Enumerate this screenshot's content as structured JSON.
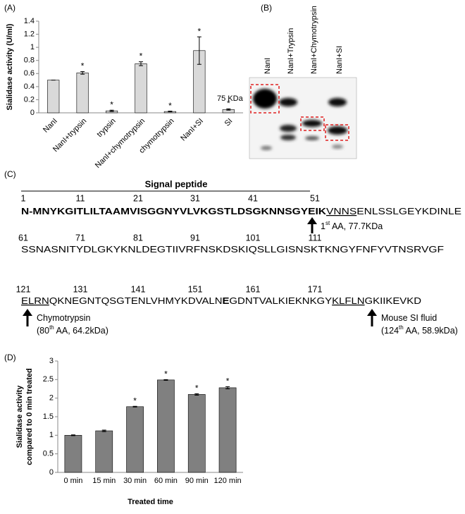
{
  "panel_labels": {
    "a": "(A)",
    "b": "(B)",
    "c": "(C)",
    "d": "(D)"
  },
  "chart_data": [
    {
      "type": "bar",
      "ylabel": [
        "Sialidase activity (U/ml)"
      ],
      "categories": [
        "NanI",
        "NanI+trypsin",
        "trypsin",
        "NanI+chymotrypsin",
        "chymotrypsin",
        "NanI+SI",
        "SI"
      ],
      "values": [
        0.5,
        0.61,
        0.03,
        0.75,
        0.02,
        0.95,
        0.05
      ],
      "errors": [
        0,
        0.02,
        0.01,
        0.03,
        0.005,
        0.21,
        0.01
      ],
      "significance": [
        null,
        "*",
        "*",
        "*",
        "*",
        "*",
        "*"
      ],
      "color": "#d9d9d9",
      "ylim": [
        0,
        1.4
      ],
      "yticks": [
        0,
        0.2,
        0.4,
        0.6,
        0.8,
        1,
        1.2,
        1.4
      ],
      "grid": false
    },
    {
      "type": "bar",
      "xlabel": "Treated time",
      "ylabel": [
        "Sialidase activity",
        "compared to 0 min treated"
      ],
      "categories": [
        "0 min",
        "15 min",
        "30 min",
        "60 min",
        "90 min",
        "120 min"
      ],
      "values": [
        1.0,
        1.12,
        1.77,
        2.49,
        2.1,
        2.28
      ],
      "errors": [
        0.01,
        0.02,
        0.01,
        0.01,
        0.02,
        0.03
      ],
      "significance": [
        null,
        null,
        "*",
        "*",
        "*",
        "*"
      ],
      "color": "#808080",
      "ylim": [
        0,
        3
      ],
      "yticks": [
        0,
        0.5,
        1,
        1.5,
        2,
        2.5,
        3
      ],
      "grid": false
    }
  ],
  "blot": {
    "lanes": [
      "NanI",
      "NanI+Trypsin",
      "NanI+Chymotrypsin",
      "NanI+SI"
    ],
    "marker": "75 KDa"
  },
  "sequence": {
    "title": "Signal peptide",
    "rows": [
      {
        "numbers": [
          "1",
          "11",
          "21",
          "31",
          "41",
          "51"
        ],
        "parts": [
          {
            "text": "N-MNYKGITLILTAAMVISGGNYVLVKGSTLDSGKNNSGYEIK",
            "style": "bold"
          },
          {
            "text": "VNNS",
            "style": "underline"
          },
          {
            "text": "ENLSSLGEYKDINLE",
            "style": "plain"
          }
        ]
      },
      {
        "numbers": [
          "61",
          "71",
          "81",
          "91",
          "101",
          "111"
        ],
        "parts": [
          {
            "text": "SSNASNITYDLGKYKNLDEGTIIVRFNSKDSKIQSLLGISNSKTKNGYFNFYVTNSRVGF",
            "style": "plain"
          }
        ]
      },
      {
        "numbers": [
          "121",
          "131",
          "141",
          "151",
          "161",
          "171"
        ],
        "parts": [
          {
            "text": "ELRN",
            "style": "underline"
          },
          {
            "text": "QKNEGNTQSGTENLVHMYKDVALN",
            "style": "plain"
          },
          {
            "text": "E",
            "style": "bold"
          },
          {
            "text": "GDNTVALKIEKNKGY",
            "style": "plain"
          },
          {
            "text": "KLFLN",
            "style": "underline"
          },
          {
            "text": "GKIIKEVKD",
            "style": "plain"
          }
        ]
      }
    ],
    "sites": [
      {
        "line1": {
          "pre": "1",
          "sup": "st",
          "post": " AA, 77.7KDa"
        }
      },
      {
        "line1": {
          "pre": "Chymotrypsin"
        },
        "line2": {
          "pre": "(80",
          "sup": "th",
          "post": " AA, 64.2kDa)"
        }
      },
      {
        "line1": {
          "pre": "Mouse SI fluid"
        },
        "line2": {
          "pre": "(124",
          "sup": "th",
          "post": " AA, 58.9kDa)"
        }
      }
    ]
  }
}
